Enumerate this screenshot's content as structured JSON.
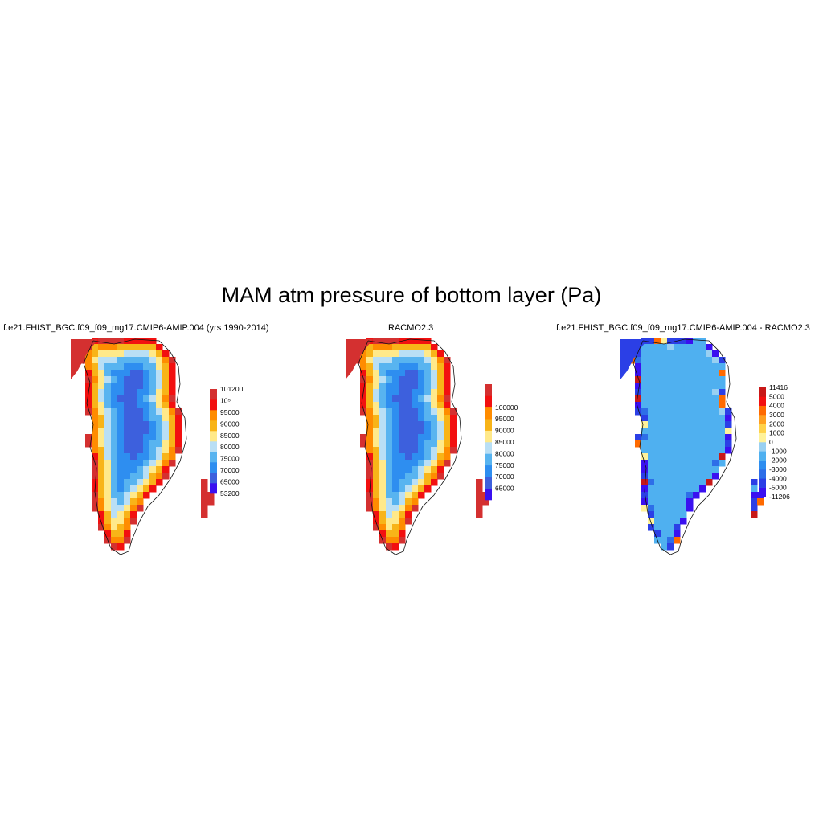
{
  "figure": {
    "title": "MAM atm pressure of bottom layer (Pa)"
  },
  "panels": [
    {
      "id": "model",
      "title": "f.e21.FHIST_BGC.f09_f09_mg17.CMIP6-AMIP.004 (yrs 1990-2014)",
      "variant": "model",
      "colorbar": {
        "colors": [
          "#3a10f0",
          "#3d60dd",
          "#2e8ef0",
          "#58b4f0",
          "#b9dff5",
          "#ffe98a",
          "#f8b418",
          "#ff8c00",
          "#f21010",
          "#d43030"
        ],
        "labels": [
          "53200",
          "65000",
          "70000",
          "75000",
          "80000",
          "85000",
          "90000",
          "95000",
          "10⁵",
          "101200"
        ],
        "label_mode": "edges"
      }
    },
    {
      "id": "obs",
      "title": "RACMO2.3",
      "variant": "obs",
      "colorbar": {
        "colors": [
          "#3a10f0",
          "#3d60dd",
          "#2e8ef0",
          "#58b4f0",
          "#b9dff5",
          "#ffe98a",
          "#f8b418",
          "#ff8c00",
          "#f21010",
          "#d43030"
        ],
        "labels": [
          "65000",
          "70000",
          "75000",
          "80000",
          "85000",
          "90000",
          "95000",
          "100000"
        ],
        "label_mode": "inner"
      }
    },
    {
      "id": "diff",
      "title": "f.e21.FHIST_BGC.f09_f09_mg17.CMIP6-AMIP.004 - RACMO2.3",
      "variant": "diff",
      "colorbar": {
        "colors": [
          "#3a10f0",
          "#2b3fe6",
          "#2e6ee8",
          "#2e8ef0",
          "#4fb0f0",
          "#99d0f2",
          "#fff29a",
          "#ffd24a",
          "#ffa020",
          "#ff6a00",
          "#f21010",
          "#c81818"
        ],
        "labels": [
          "-11206",
          "-5000",
          "-4000",
          "-3000",
          "-2000",
          "-1000",
          "0",
          "1000",
          "2000",
          "3000",
          "4000",
          "5000",
          "11416"
        ],
        "label_mode": "edges"
      }
    }
  ]
}
